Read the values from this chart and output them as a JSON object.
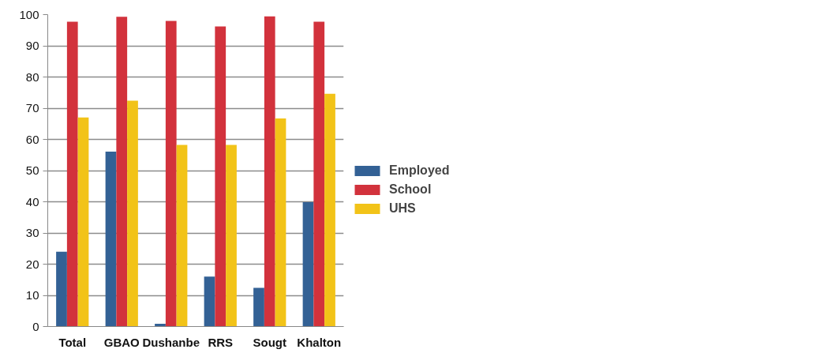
{
  "chart_data": {
    "type": "bar",
    "categories": [
      "Total",
      "GBAO",
      "Dushanbe",
      "RRS",
      "Sougt",
      "Khalton"
    ],
    "series": [
      {
        "name": "Employed",
        "color": "#336195",
        "values": [
          24,
          56.1,
          0.9,
          16,
          12.4,
          39.9
        ]
      },
      {
        "name": "School",
        "color": "#d2323c",
        "values": [
          97.7,
          99.3,
          98,
          96.2,
          99.4,
          97.7
        ]
      },
      {
        "name": "UHS",
        "color": "#f2c318",
        "values": [
          67,
          72.4,
          58.2,
          58.2,
          66.7,
          74.6
        ]
      }
    ],
    "ylim": [
      0,
      100
    ],
    "yticks": [
      0,
      10,
      20,
      30,
      40,
      50,
      60,
      70,
      80,
      90,
      100
    ],
    "grid": "y",
    "legend": "right"
  }
}
